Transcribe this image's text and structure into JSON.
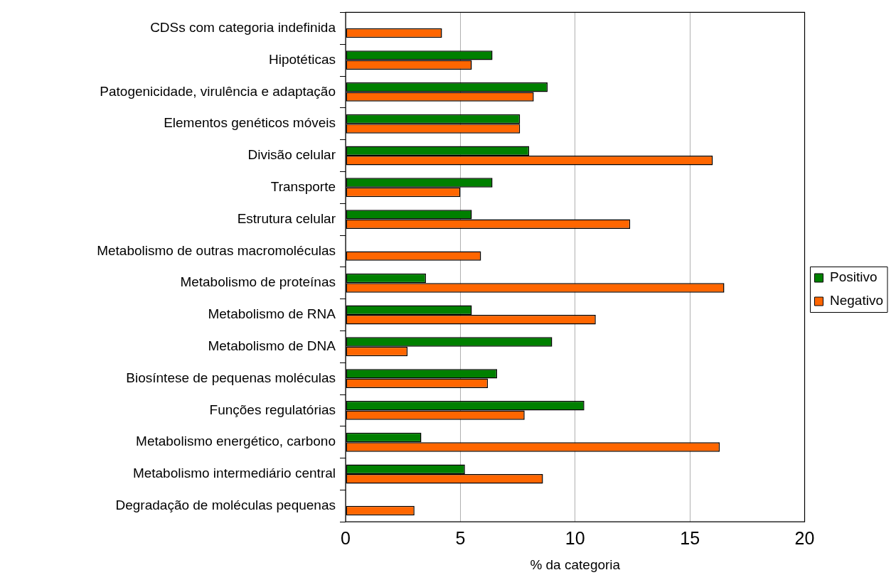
{
  "chart_data": {
    "type": "bar",
    "orientation": "horizontal",
    "xlabel": "% da categoria",
    "categories": [
      "CDSs com categoria indefinida",
      "Hipotéticas",
      "Patogenicidade, virulência e adaptação",
      "Elementos genéticos móveis",
      "Divisão celular",
      "Transporte",
      "Estrutura celular",
      "Metabolismo de outras macromoléculas",
      "Metabolismo de proteínas",
      "Metabolismo de RNA",
      "Metabolismo de DNA",
      "Biosíntese de pequenas moléculas",
      "Funções regulatórias",
      "Metabolismo energético, carbono",
      "Metabolismo intermediário central",
      "Degradação de moléculas pequenas"
    ],
    "series": [
      {
        "name": "Positivo",
        "color": "#008000",
        "values": [
          null,
          6.4,
          8.8,
          7.6,
          8.0,
          6.4,
          5.5,
          null,
          3.5,
          5.5,
          9.0,
          6.6,
          10.4,
          3.3,
          5.2,
          null
        ]
      },
      {
        "name": "Negativo",
        "color": "#ff6600",
        "values": [
          4.2,
          5.5,
          8.2,
          7.6,
          16.0,
          5.0,
          12.4,
          5.9,
          16.5,
          10.9,
          2.7,
          6.2,
          7.8,
          16.3,
          8.6,
          3.0
        ]
      }
    ],
    "xlim": [
      0,
      20
    ],
    "xticks": [
      0,
      5,
      10,
      15,
      20
    ],
    "grid": "x",
    "legend": "right"
  }
}
